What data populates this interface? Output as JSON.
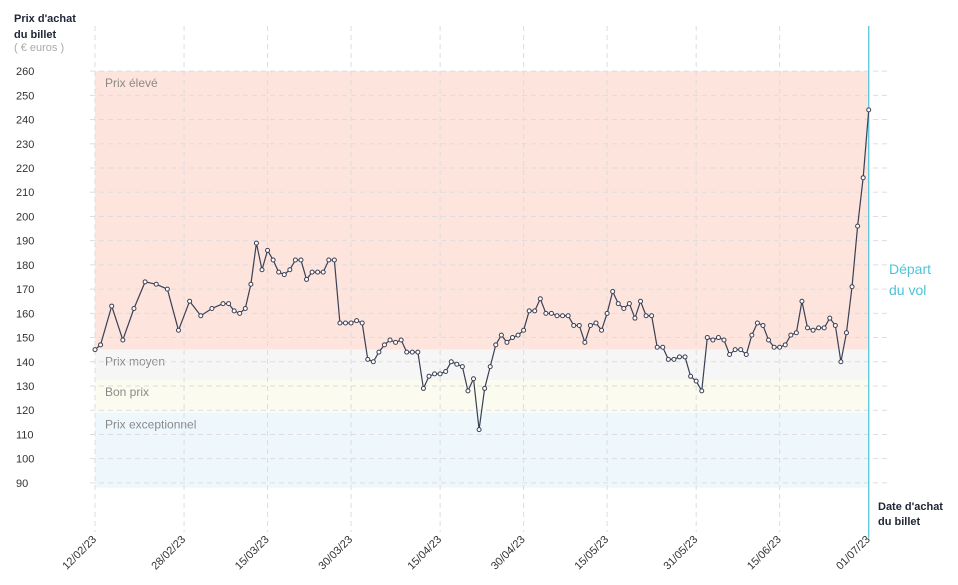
{
  "chart_data": {
    "type": "line",
    "y_title": [
      "Prix d'achat",
      "du billet"
    ],
    "y_unit": "( € euros )",
    "x_title": [
      "Date d'achat",
      "du billet"
    ],
    "x": [
      "12/02/23",
      "13/02/23",
      "15/02/23",
      "17/02/23",
      "19/02/23",
      "21/02/23",
      "23/02/23",
      "25/02/23",
      "27/02/23",
      "01/03/23",
      "03/03/23",
      "05/03/23",
      "07/03/23",
      "08/03/23",
      "09/03/23",
      "10/03/23",
      "11/03/23",
      "12/03/23",
      "13/03/23",
      "14/03/23",
      "15/03/23",
      "16/03/23",
      "17/03/23",
      "18/03/23",
      "19/03/23",
      "20/03/23",
      "21/03/23",
      "22/03/23",
      "23/03/23",
      "24/03/23",
      "25/03/23",
      "26/03/23",
      "27/03/23",
      "28/03/23",
      "29/03/23",
      "30/03/23",
      "31/03/23",
      "01/04/23",
      "02/04/23",
      "03/04/23",
      "04/04/23",
      "05/04/23",
      "06/04/23",
      "07/04/23",
      "08/04/23",
      "09/04/23",
      "10/04/23",
      "11/04/23",
      "12/04/23",
      "13/04/23",
      "14/04/23",
      "15/04/23",
      "16/04/23",
      "17/04/23",
      "18/04/23",
      "19/04/23",
      "20/04/23",
      "21/04/23",
      "22/04/23",
      "23/04/23",
      "24/04/23",
      "25/04/23",
      "26/04/23",
      "27/04/23",
      "28/04/23",
      "29/04/23",
      "30/04/23",
      "01/05/23",
      "02/05/23",
      "03/05/23",
      "04/05/23",
      "05/05/23",
      "06/05/23",
      "07/05/23",
      "08/05/23",
      "09/05/23",
      "10/05/23",
      "11/05/23",
      "12/05/23",
      "13/05/23",
      "14/05/23",
      "15/05/23",
      "16/05/23",
      "17/05/23",
      "18/05/23",
      "19/05/23",
      "20/05/23",
      "21/05/23",
      "22/05/23",
      "23/05/23",
      "24/05/23",
      "25/05/23",
      "26/05/23",
      "27/05/23",
      "28/05/23",
      "29/05/23",
      "30/05/23",
      "31/05/23",
      "01/06/23",
      "02/06/23",
      "03/06/23",
      "04/06/23",
      "05/06/23",
      "06/06/23",
      "07/06/23",
      "08/06/23",
      "09/06/23",
      "10/06/23",
      "11/06/23",
      "12/06/23",
      "13/06/23",
      "14/06/23",
      "15/06/23",
      "16/06/23",
      "17/06/23",
      "18/06/23",
      "19/06/23",
      "20/06/23",
      "21/06/23",
      "22/06/23",
      "23/06/23",
      "24/06/23",
      "25/06/23",
      "26/06/23",
      "27/06/23",
      "28/06/23",
      "29/06/23",
      "30/06/23",
      "01/07/23"
    ],
    "series": [
      {
        "color": "#3a4055",
        "values": [
          145,
          147,
          163,
          149,
          162,
          173,
          172,
          170,
          153,
          165,
          159,
          162,
          164,
          164,
          161,
          160,
          162,
          172,
          189,
          178,
          186,
          182,
          177,
          176,
          178,
          182,
          182,
          174,
          177,
          177,
          177,
          182,
          182,
          156,
          156,
          156,
          157,
          156,
          141,
          140,
          144,
          147,
          149,
          148,
          149,
          144,
          144,
          144,
          129,
          134,
          135,
          135,
          136,
          140,
          139,
          138,
          128,
          133,
          112,
          129,
          138,
          147,
          151,
          148,
          150,
          151,
          153,
          161,
          161,
          166,
          160,
          160,
          159,
          159,
          159,
          155,
          155,
          148,
          155,
          156,
          153,
          160,
          169,
          164,
          162,
          164,
          158,
          165,
          159,
          159,
          146,
          146,
          141,
          141,
          142,
          142,
          134,
          132,
          128,
          150,
          149,
          150,
          149,
          143,
          145,
          145,
          143,
          151,
          156,
          155,
          149,
          146,
          146,
          147,
          151,
          152,
          165,
          154,
          153,
          154,
          154,
          158,
          155,
          140,
          152,
          171,
          196,
          216,
          244
        ]
      }
    ],
    "xlim": [
      "12/02/23",
      "05/07/23"
    ],
    "xticks": [
      "12/02/23",
      "28/02/23",
      "15/03/23",
      "30/03/23",
      "15/04/23",
      "30/04/23",
      "15/05/23",
      "31/05/23",
      "15/06/23",
      "01/07/23"
    ],
    "ylim": [
      85,
      265
    ],
    "yticks": [
      90,
      100,
      110,
      120,
      130,
      140,
      150,
      160,
      170,
      180,
      190,
      200,
      210,
      220,
      230,
      240,
      250,
      260
    ],
    "grid": true,
    "zones": [
      {
        "label": "Prix élevé",
        "from": 145,
        "to": 260,
        "color": "#fde4dd"
      },
      {
        "label": "Prix moyen",
        "from": 132.5,
        "to": 145,
        "color": "#f6f6f6"
      },
      {
        "label": "Bon prix",
        "from": 119,
        "to": 132.5,
        "color": "#fbfbef"
      },
      {
        "label": "Prix exceptionnel",
        "from": 88,
        "to": 119,
        "color": "#eef8fc"
      }
    ],
    "departure": {
      "x": "01/07/23",
      "label": [
        "Départ",
        "du vol"
      ],
      "color": "#4ec3d9"
    }
  }
}
